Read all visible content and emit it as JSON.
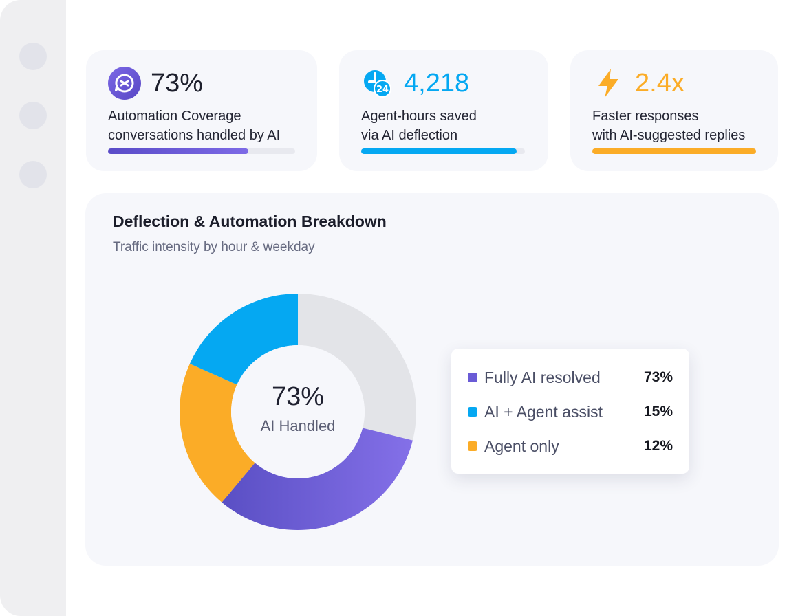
{
  "colors": {
    "purple": "#6a5bd6",
    "blue": "#05a8f2",
    "orange": "#fbac27",
    "grey": "#e3e4e8"
  },
  "kpis": [
    {
      "icon": "ai-chat-icon",
      "value": "73%",
      "line1": "Automation Coverage",
      "line2": "conversations handled by AI",
      "progress": 0.75
    },
    {
      "icon": "24h-clock-icon",
      "value": "4,218",
      "line1": "Agent-hours saved",
      "line2": "via AI deflection",
      "progress": 0.95
    },
    {
      "icon": "lightning-icon",
      "value": "2.4x",
      "line1": "Faster responses",
      "line2": "with AI-suggested replies",
      "progress": 1.0
    }
  ],
  "breakdown": {
    "title": "Deflection & Automation Breakdown",
    "subtitle": "Traffic intensity by hour & weekday",
    "center_value": "73%",
    "center_label": "AI Handled"
  },
  "chart_data": {
    "type": "pie",
    "categories": [
      "Fully AI resolved",
      "AI + Agent assist",
      "Agent only"
    ],
    "values": [
      73,
      15,
      12
    ],
    "legend_values": [
      "73%",
      "15%",
      "12%"
    ],
    "colors": [
      "#6a5bd6",
      "#05a8f2",
      "#fbac27"
    ],
    "legend_position": "right"
  }
}
